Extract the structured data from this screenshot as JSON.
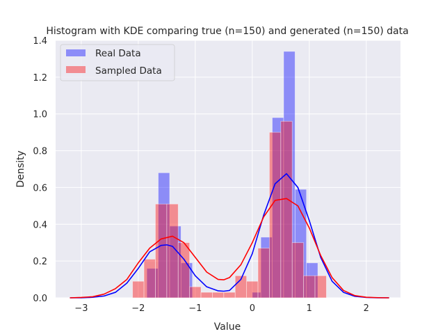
{
  "chart_data": {
    "type": "bar",
    "title": "Histogram with KDE comparing true (n=150) and generated (n=150) data",
    "xlabel": "Value",
    "ylabel": "Density",
    "xlim": [
      -3.45,
      2.6
    ],
    "ylim": [
      0,
      1.4
    ],
    "xticks": [
      -3,
      -2,
      -1,
      0,
      1,
      2
    ],
    "yticks": [
      0.0,
      0.2,
      0.4,
      0.6,
      0.8,
      1.0,
      1.2,
      1.4
    ],
    "grid": true,
    "legend_position": "top-left",
    "series": [
      {
        "name": "Real Data",
        "kind": "histogram",
        "color": "#0000ff",
        "bins": [
          {
            "x0": -1.85,
            "x1": -1.65,
            "value": 0.16
          },
          {
            "x0": -1.65,
            "x1": -1.45,
            "value": 0.68
          },
          {
            "x0": -1.45,
            "x1": -1.25,
            "value": 0.39
          },
          {
            "x0": -1.25,
            "x1": -1.05,
            "value": 0.19
          },
          {
            "x0": 0.0,
            "x1": 0.15,
            "value": 0.03
          },
          {
            "x0": 0.15,
            "x1": 0.35,
            "value": 0.33
          },
          {
            "x0": 0.35,
            "x1": 0.55,
            "value": 0.98
          },
          {
            "x0": 0.55,
            "x1": 0.75,
            "value": 1.34
          },
          {
            "x0": 0.75,
            "x1": 0.95,
            "value": 0.59
          },
          {
            "x0": 0.95,
            "x1": 1.15,
            "value": 0.19
          }
        ]
      },
      {
        "name": "Sampled Data",
        "kind": "histogram",
        "color": "#ff0000",
        "bins": [
          {
            "x0": -2.1,
            "x1": -1.9,
            "value": 0.09
          },
          {
            "x0": -1.9,
            "x1": -1.7,
            "value": 0.21
          },
          {
            "x0": -1.7,
            "x1": -1.5,
            "value": 0.51
          },
          {
            "x0": -1.5,
            "x1": -1.3,
            "value": 0.51
          },
          {
            "x0": -1.3,
            "x1": -1.1,
            "value": 0.3
          },
          {
            "x0": -1.1,
            "x1": -0.9,
            "value": 0.06
          },
          {
            "x0": -0.9,
            "x1": -0.7,
            "value": 0.03
          },
          {
            "x0": -0.7,
            "x1": -0.5,
            "value": 0.03
          },
          {
            "x0": -0.5,
            "x1": -0.3,
            "value": 0.03
          },
          {
            "x0": -0.3,
            "x1": -0.1,
            "value": 0.12
          },
          {
            "x0": -0.1,
            "x1": 0.1,
            "value": 0.09
          },
          {
            "x0": 0.1,
            "x1": 0.3,
            "value": 0.27
          },
          {
            "x0": 0.3,
            "x1": 0.5,
            "value": 0.9
          },
          {
            "x0": 0.5,
            "x1": 0.7,
            "value": 0.96
          },
          {
            "x0": 0.7,
            "x1": 0.9,
            "value": 0.3
          },
          {
            "x0": 0.9,
            "x1": 1.1,
            "value": 0.12
          },
          {
            "x0": 1.1,
            "x1": 1.3,
            "value": 0.12
          }
        ]
      },
      {
        "name": "Real Data KDE",
        "kind": "line",
        "color": "#0000ff",
        "x": [
          -3.2,
          -3.0,
          -2.8,
          -2.6,
          -2.4,
          -2.2,
          -2.0,
          -1.8,
          -1.6,
          -1.5,
          -1.4,
          -1.2,
          -1.0,
          -0.8,
          -0.6,
          -0.5,
          -0.4,
          -0.2,
          0.0,
          0.2,
          0.4,
          0.6,
          0.8,
          1.0,
          1.2,
          1.4,
          1.6,
          1.8,
          2.0,
          2.2,
          2.4
        ],
        "y": [
          0.0,
          0.0,
          0.003,
          0.01,
          0.03,
          0.08,
          0.16,
          0.25,
          0.285,
          0.288,
          0.28,
          0.21,
          0.12,
          0.06,
          0.038,
          0.036,
          0.04,
          0.1,
          0.24,
          0.45,
          0.62,
          0.675,
          0.6,
          0.42,
          0.22,
          0.09,
          0.03,
          0.008,
          0.002,
          0.0,
          0.0
        ]
      },
      {
        "name": "Sampled Data KDE",
        "kind": "line",
        "color": "#ff0000",
        "x": [
          -3.2,
          -3.0,
          -2.8,
          -2.6,
          -2.4,
          -2.2,
          -2.0,
          -1.8,
          -1.6,
          -1.4,
          -1.2,
          -1.0,
          -0.8,
          -0.6,
          -0.5,
          -0.4,
          -0.2,
          0.0,
          0.2,
          0.4,
          0.6,
          0.8,
          1.0,
          1.2,
          1.4,
          1.6,
          1.8,
          2.0,
          2.2,
          2.4
        ],
        "y": [
          0.0,
          0.002,
          0.006,
          0.02,
          0.05,
          0.1,
          0.19,
          0.27,
          0.32,
          0.335,
          0.3,
          0.22,
          0.14,
          0.1,
          0.098,
          0.11,
          0.18,
          0.3,
          0.44,
          0.53,
          0.54,
          0.5,
          0.38,
          0.23,
          0.11,
          0.04,
          0.012,
          0.003,
          0.001,
          0.0
        ]
      }
    ]
  },
  "legend": {
    "items": [
      {
        "label": "Real Data",
        "color": "#0000ff"
      },
      {
        "label": "Sampled Data",
        "color": "#ff0000"
      }
    ]
  },
  "style": {
    "plot_background": "#eaeaf2",
    "grid_color": "#ffffff",
    "text_color": "#262626"
  }
}
